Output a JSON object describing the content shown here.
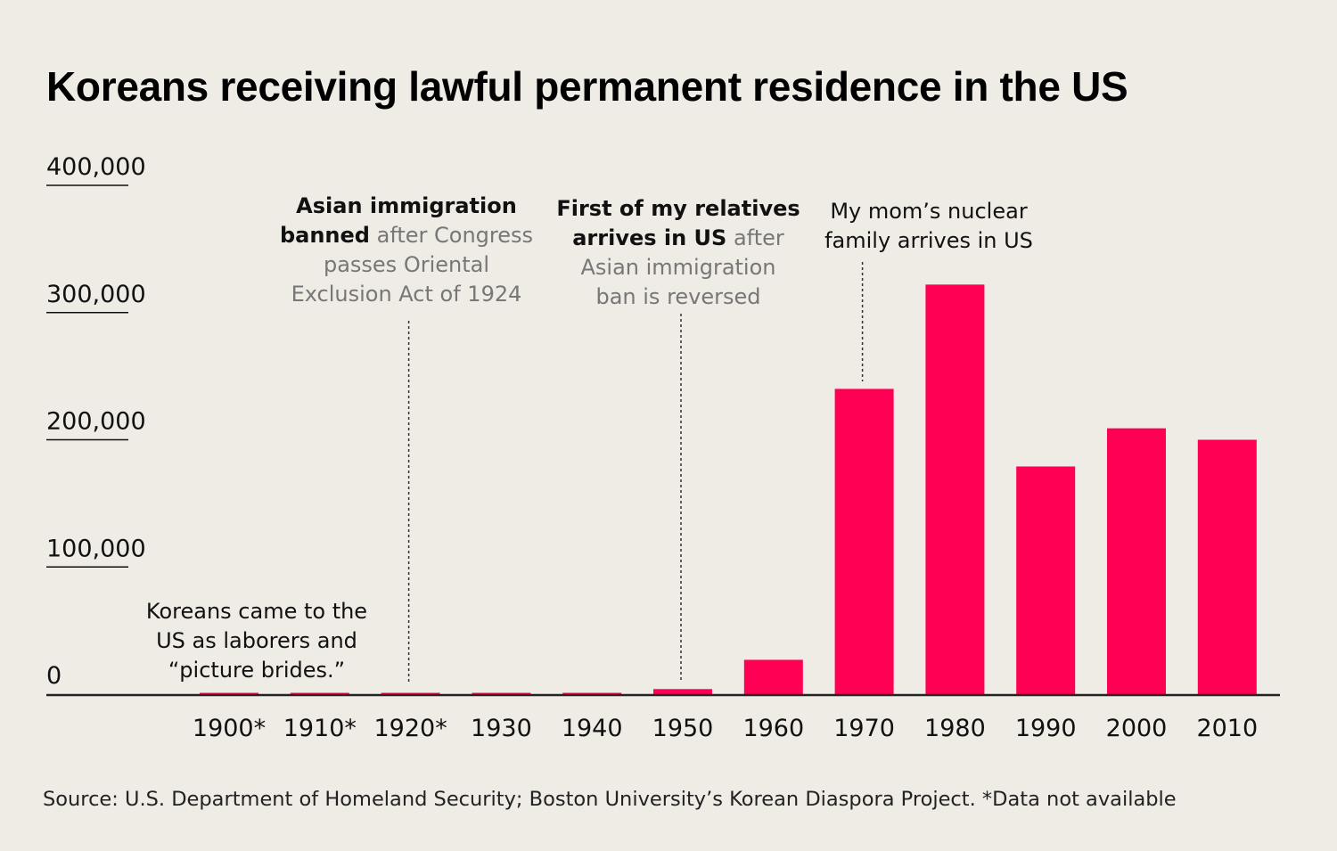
{
  "title": "Koreans receiving lawful permanent residence in the US",
  "source": "Source: U.S. Department of Homeland Security; Boston University’s Korean Diaspora Project. *Data not available",
  "chart_data": {
    "type": "bar",
    "categories": [
      "1900*",
      "1910*",
      "1920*",
      "1930",
      "1940",
      "1950",
      "1960",
      "1970",
      "1980",
      "1990",
      "2000",
      "2010"
    ],
    "values": [
      null,
      null,
      null,
      0,
      0,
      4000,
      27000,
      240000,
      322000,
      179000,
      209000,
      200000
    ],
    "ylim": [
      0,
      400000
    ],
    "yticks": [
      0,
      100000,
      200000,
      300000,
      400000
    ],
    "ytick_labels": [
      "0",
      "100,000",
      "200,000",
      "300,000",
      "400,000"
    ],
    "bar_color": "#ff0055",
    "grid": false,
    "legend": "none",
    "annotations": {
      "laborers": {
        "lines": [
          "Koreans came to the",
          "US as laborers and",
          "“picture brides.”"
        ]
      },
      "ban": {
        "bold1": "Asian immigration",
        "bold2": "banned",
        "rest2": " after Congress",
        "line3": "passes Oriental",
        "line4": "Exclusion Act of 1924",
        "category": "1920*"
      },
      "relatives": {
        "bold1": "First of my relatives",
        "bold2": "arrives in US",
        "rest2": " after",
        "line3": "Asian immigration",
        "line4": "ban is reversed",
        "category": "1950"
      },
      "family": {
        "line1": "My mom’s nuclear",
        "line2": "family arrives in US",
        "category": "1970"
      }
    }
  }
}
